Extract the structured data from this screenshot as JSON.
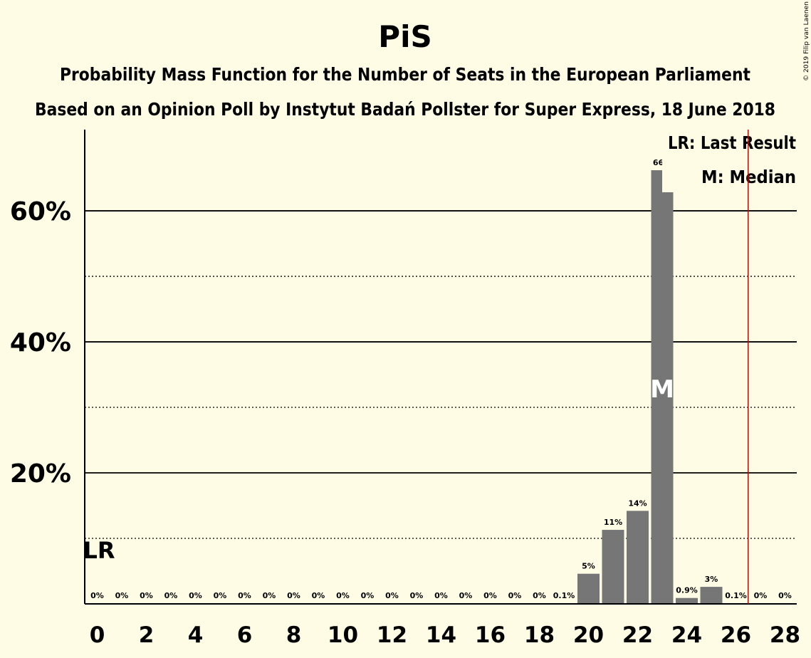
{
  "title": "PiS",
  "subtitle1": "Probability Mass Function for the Number of Seats in the European Parliament",
  "subtitle2": "Based on an Opinion Poll by Instytut Badań Pollster for Super Express, 18 June 2018",
  "copyright": "© 2019 Filip van Laenen",
  "legend": {
    "lr": "LR: Last Result",
    "median": "M: Median"
  },
  "colors": {
    "background": "#FFFCE5",
    "bar": "#767676",
    "last_result_line": "#D00000"
  },
  "chart_data": {
    "type": "bar",
    "x": [
      0,
      1,
      2,
      3,
      4,
      5,
      6,
      7,
      8,
      9,
      10,
      11,
      12,
      13,
      14,
      15,
      16,
      17,
      18,
      19,
      20,
      21,
      22,
      23,
      24,
      25,
      26,
      27,
      28
    ],
    "values": [
      0,
      0,
      0,
      0,
      0,
      0,
      0,
      0,
      0,
      0,
      0,
      0,
      0,
      0,
      0,
      0,
      0,
      0,
      0,
      0.1,
      4.6,
      11.3,
      14.2,
      66.2,
      0.9,
      2.6,
      0.1,
      0,
      0
    ],
    "data_labels": [
      "0%",
      "0%",
      "0%",
      "0%",
      "0%",
      "0%",
      "0%",
      "0%",
      "0%",
      "0%",
      "0%",
      "0%",
      "0%",
      "0%",
      "0%",
      "0%",
      "0%",
      "0%",
      "0%",
      "0.1%",
      "5%",
      "11%",
      "14%",
      "66%",
      "0.9%",
      "3%",
      "0.1%",
      "0%",
      "0%"
    ],
    "x_ticks": [
      0,
      2,
      4,
      6,
      8,
      10,
      12,
      14,
      16,
      18,
      20,
      22,
      24,
      26,
      28
    ],
    "y_ticks": [
      20,
      40,
      60
    ],
    "y_tick_labels": [
      "20%",
      "40%",
      "60%"
    ],
    "y_minor_ticks": [
      10,
      30,
      50
    ],
    "ylim": [
      0,
      72.4
    ],
    "median": 23,
    "median_label": "M",
    "last_result": 0,
    "last_result_label": "LR",
    "majority_line_x": 26.5
  }
}
